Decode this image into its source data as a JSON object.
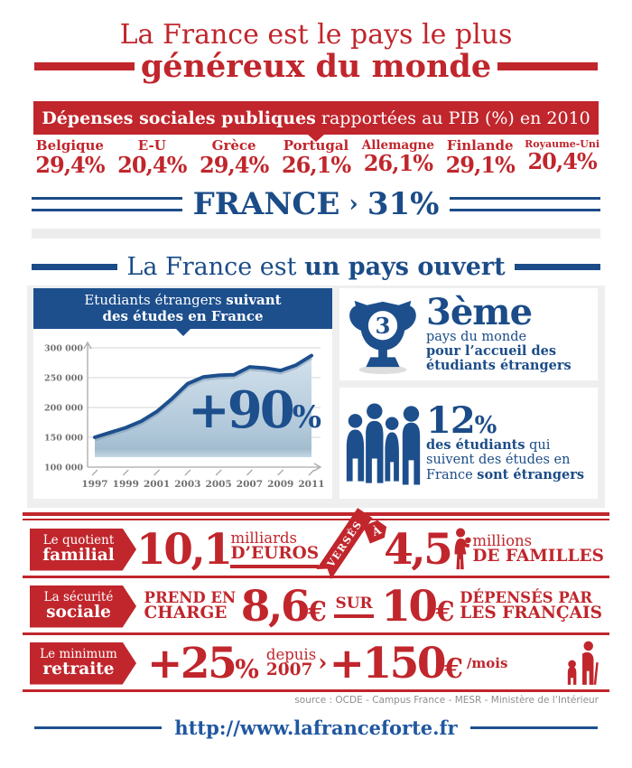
{
  "colors": {
    "red": "#c0262c",
    "navy": "#1b4c88",
    "chart_header_blue": "#1d4f8d",
    "panel_gray": "#efefef",
    "url_blue": "#2057a0",
    "source_gray": "#8f8f8f"
  },
  "header": {
    "title_line1": "La France est le pays le plus",
    "title_line2": "généreux du monde"
  },
  "pib_banner": {
    "bold": "Dépenses sociales publiques",
    "regular": " rapportées au PIB (%) en 2010"
  },
  "countries": [
    {
      "name": "Belgique",
      "value": "29,4%"
    },
    {
      "name": "E-U",
      "value": "20,4%"
    },
    {
      "name": "Grèce",
      "value": "29,4%"
    },
    {
      "name": "Portugal",
      "value": "26,1%"
    },
    {
      "name": "Allemagne",
      "value": "26,1%"
    },
    {
      "name": "Finlande",
      "value": "29,1%"
    },
    {
      "name": "Royaume-Uni",
      "value": "20,4%"
    }
  ],
  "france_stat": {
    "label": "FRANCE",
    "chevron": "›",
    "value": "31%"
  },
  "open_section": {
    "title_regular": "La France est ",
    "title_bold": "un pays ouvert",
    "chart_title_line1_regular": "Etudiants étrangers ",
    "chart_title_line1_bold": "suivant",
    "chart_title_line2": "des études en France",
    "growth_number": "+90",
    "growth_percent": "%",
    "rank": {
      "trophy_number": "3",
      "big": "3ème",
      "line1": "pays du monde",
      "line2": "pour l’accueil des",
      "line3": "étudiants étrangers"
    },
    "students": {
      "big": "12",
      "percent": "%",
      "line1_bold": "des étudiants",
      "line1_rest": " qui",
      "line2": "suivent des études en",
      "line3_regular": "France ",
      "line3_bold": "sont étrangers"
    }
  },
  "chart_data": {
    "type": "area",
    "title": "Etudiants étrangers suivant des études en France",
    "x": [
      1997,
      1998,
      1999,
      2000,
      2001,
      2002,
      2003,
      2004,
      2005,
      2006,
      2007,
      2008,
      2009,
      2010,
      2011
    ],
    "values": [
      150000,
      158000,
      166000,
      177000,
      193000,
      215000,
      240000,
      251000,
      254000,
      255000,
      268000,
      266000,
      262000,
      271000,
      287000
    ],
    "ylim": [
      100000,
      300000
    ],
    "yticks": [
      100000,
      150000,
      200000,
      250000,
      300000
    ],
    "xticks": [
      1997,
      1999,
      2001,
      2003,
      2005,
      2007,
      2009,
      2011
    ],
    "grid": true,
    "annotation": "+90%",
    "line_color": "#1d4f8d",
    "fill_top": "#d3e1ec",
    "fill_bottom": "#afc7d9"
  },
  "stat_rows": {
    "quotient": {
      "label_line1": "Le quotient",
      "label_line2": "familial",
      "big1": "10,1",
      "stack1_top": "milliards",
      "stack1_bottom": "D’EUROS",
      "ribbon": "VERSÉS",
      "ribbon_tip": "À",
      "big2": "4,5",
      "stack2_top": "millions",
      "stack2_bottom": "DE FAMILLES"
    },
    "securite": {
      "label_line1": "La sécurité",
      "label_line2": "sociale",
      "pre_top": "PREND EN",
      "pre_bottom": "CHARGE",
      "big1": "8,6",
      "euro1": "€",
      "mid": "SUR",
      "big2": "10",
      "euro2": "€",
      "post_top": "DÉPENSÉS PAR",
      "post_bottom": "LES FRANÇAIS"
    },
    "retraite": {
      "label_line1": "Le minimum",
      "label_line2": "retraite",
      "big1": "+25",
      "percent": "%",
      "stack_top": "depuis",
      "stack_bottom": "2007",
      "chevron": "›",
      "big2": "+150",
      "euro": "€",
      "per": "/mois"
    }
  },
  "source_line": "source : OCDE - Campus France - MESR - Ministère de l’Intérieur",
  "footer": {
    "url": "http://www.lafranceforte.fr"
  }
}
